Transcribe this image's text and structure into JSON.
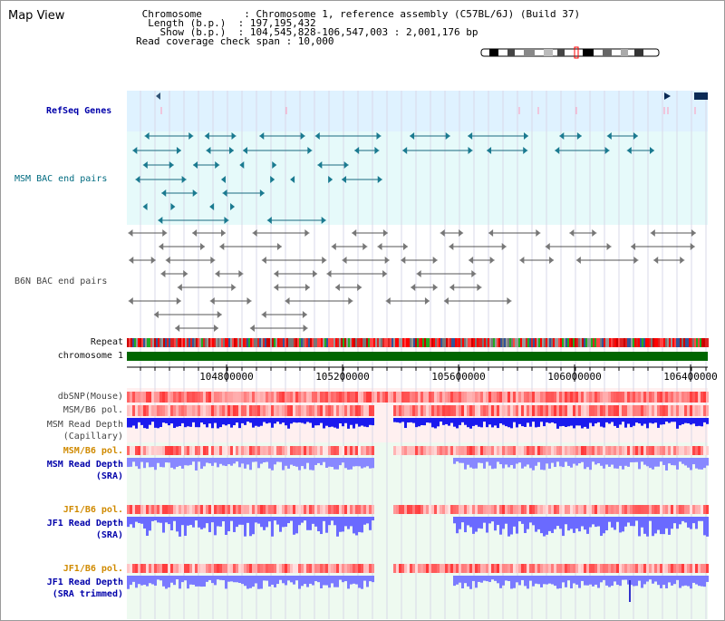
{
  "view": {
    "title": "Map View",
    "info_lines": [
      " Chromosome       : Chromosome 1, reference assembly (C57BL/6J) (Build 37)",
      "  Length (b.p.)  : 197,195,432",
      "    Show (b.p.)  : 104,545,828-106,547,003 : 2,001,176 bp",
      "Read coverage check span : 10,000"
    ]
  },
  "tracks": {
    "refseq_label": "RefSeq Genes",
    "msm_bac_label": "MSM BAC end pairs",
    "b6n_bac_label": "B6N BAC end pairs",
    "repeat_label": "Repeat",
    "chromosome_label": "chromosome 1",
    "dbsnp_label": "dbSNP(Mouse)",
    "msmb6_pol_label": "MSM/B6 pol.",
    "msm_depth_cap_label_1": "MSM Read Depth",
    "msm_depth_cap_label_2": "(Capillary)",
    "msmb6_pol_sra_label": "MSM/B6 pol.",
    "msm_depth_sra_label_1": "MSM Read Depth",
    "msm_depth_sra_label_2": "(SRA)",
    "jf1b6_pol_label": "JF1/B6 pol.",
    "jf1_depth_label_1": "JF1 Read Depth",
    "jf1_depth_label_2": "(SRA)",
    "jf1b6_pol2_label": "JF1/B6 pol.",
    "jf1_trim_label_1": "JF1 Read Depth",
    "jf1_trim_label_2": "(SRA trimmed)"
  },
  "axis": {
    "ticks": [
      "104800000",
      "105200000",
      "105600000",
      "106000000",
      "106400000"
    ]
  },
  "colors": {
    "refseq_bg": "#dff2ff",
    "bac_bg": "#e6fafa",
    "chromosome_bar": "#006600",
    "depth_blue": "#0000dd",
    "depth_light": "#7777ff",
    "pol_red": "#ff5555"
  }
}
